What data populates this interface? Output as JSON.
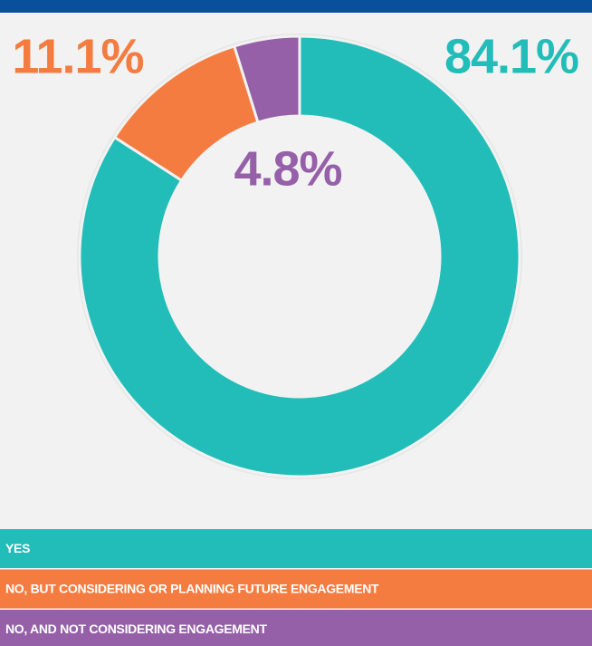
{
  "chart_data": {
    "type": "donut",
    "categories": [
      "YES",
      "NO, BUT CONSIDERING OR PLANNING FUTURE ENGAGEMENT",
      "NO, AND NOT CONSIDERING ENGAGEMENT"
    ],
    "values": [
      84.1,
      11.1,
      4.8
    ],
    "value_labels": [
      "84.1%",
      "11.1%",
      "4.8%"
    ],
    "colors": [
      "#22bdb8",
      "#f47c41",
      "#9560a8"
    ]
  }
}
